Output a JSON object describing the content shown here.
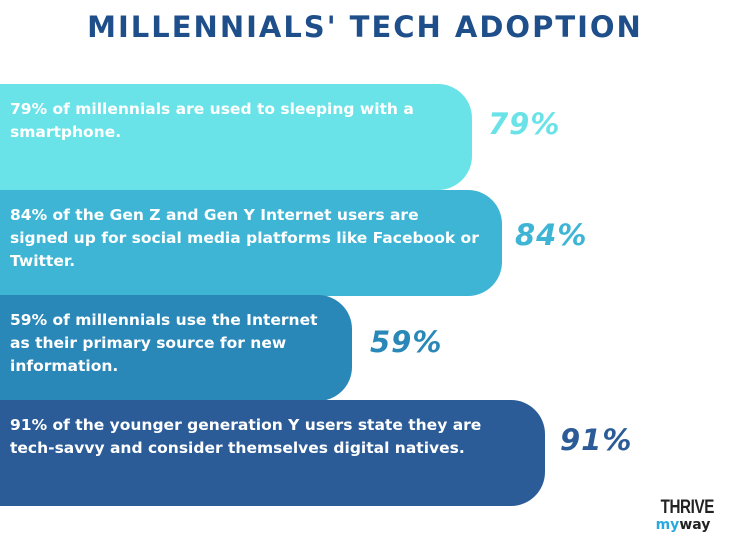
{
  "title": "MILLENNIALS' TECH ADOPTION",
  "chart_data": {
    "type": "bar",
    "orientation": "horizontal",
    "title": "MILLENNIALS' TECH ADOPTION",
    "items": [
      {
        "text": "79% of millennials are used to sleeping with a smartphone.",
        "value": 79,
        "label": "79%",
        "color": "#6ae3e8"
      },
      {
        "text": "84% of the Gen Z and Gen Y Internet users are signed up for social media platforms like Facebook or Twitter.",
        "value": 84,
        "label": "84%",
        "color": "#3fb5d5"
      },
      {
        "text": "59% of millennials use the Internet as their primary source for new information.",
        "value": 59,
        "label": "59%",
        "color": "#2a88b8"
      },
      {
        "text": "91% of the younger generation Y users state they are tech-savvy and consider themselves digital natives.",
        "value": 91,
        "label": "91%",
        "color": "#2b5c97"
      }
    ]
  },
  "logo": {
    "line1": "THRIVE",
    "my": "my",
    "way": "way",
    "my_color": "#29a8e0"
  }
}
